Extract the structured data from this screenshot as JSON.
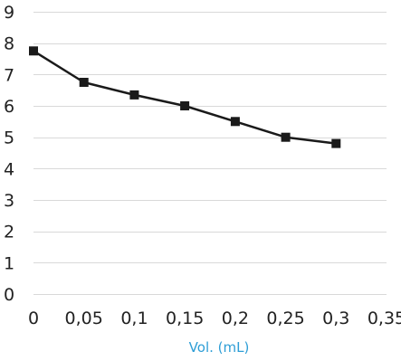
{
  "chart_data": {
    "type": "line",
    "title": "",
    "xlabel": "Vol. (mL)",
    "ylabel": "",
    "xlim": [
      0,
      0.35
    ],
    "ylim": [
      0,
      9
    ],
    "x_ticks": [
      0,
      0.05,
      0.1,
      0.15,
      0.2,
      0.25,
      0.3,
      0.35
    ],
    "x_tick_labels": [
      "0",
      "0,05",
      "0,1",
      "0,15",
      "0,2",
      "0,25",
      "0,3",
      "0,35"
    ],
    "y_ticks": [
      0,
      1,
      2,
      3,
      4,
      5,
      6,
      7,
      8,
      9
    ],
    "y_tick_labels": [
      "0",
      "1",
      "2",
      "3",
      "4",
      "5",
      "6",
      "7",
      "8",
      "9"
    ],
    "grid": "horizontal",
    "legend": "none",
    "series": [
      {
        "x": [
          0,
          0.05,
          0.1,
          0.15,
          0.2,
          0.25,
          0.3
        ],
        "values": [
          7.75,
          6.75,
          6.35,
          6.0,
          5.5,
          5.0,
          4.8
        ],
        "marker": "square",
        "color": "#1a1a1a"
      }
    ],
    "colors": {
      "line": "#1a1a1a",
      "grid": "#d9d9d9",
      "tick_text": "#222222",
      "x_title": "#2e9ed6"
    }
  }
}
